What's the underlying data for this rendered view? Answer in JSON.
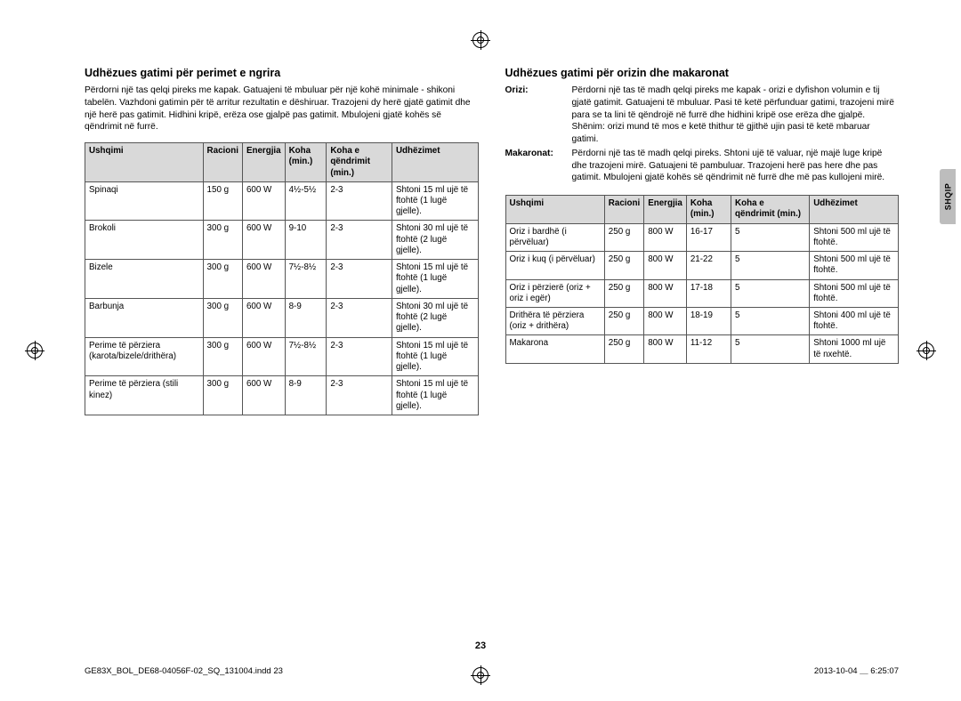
{
  "pageNumber": "23",
  "footer": {
    "left": "GE83X_BOL_DE68-04056F-02_SQ_131004.indd   23",
    "right": "2013-10-04   ＿ 6:25:07"
  },
  "sideTab": "SHQIP",
  "left": {
    "title": "Udhëzues gatimi për perimet e ngrira",
    "intro": "Përdorni një tas qelqi pireks me kapak. Gatuajeni të mbuluar për një kohë minimale - shikoni tabelën. Vazhdoni gatimin për të arritur rezultatin e dëshiruar. Trazojeni dy herë gjatë gatimit dhe një herë pas gatimit. Hidhini kripë, erëza ose gjalpë pas gatimit. Mbulojeni gjatë kohës së qëndrimit në furrë.",
    "headers": [
      "Ushqimi",
      "Racioni",
      "Energjia",
      "Koha (min.)",
      "Koha e qëndrimit (min.)",
      "Udhëzimet"
    ],
    "rows": [
      [
        "Spinaqi",
        "150 g",
        "600 W",
        "4½-5½",
        "2-3",
        "Shtoni 15 ml ujë të ftohtë (1 lugë gjelle)."
      ],
      [
        "Brokoli",
        "300 g",
        "600 W",
        "9-10",
        "2-3",
        "Shtoni 30 ml ujë të ftohtë (2 lugë gjelle)."
      ],
      [
        "Bizele",
        "300 g",
        "600 W",
        "7½-8½",
        "2-3",
        "Shtoni 15 ml ujë të ftohtë (1 lugë gjelle)."
      ],
      [
        "Barbunja",
        "300 g",
        "600 W",
        "8-9",
        "2-3",
        "Shtoni 30 ml ujë të ftohtë (2 lugë gjelle)."
      ],
      [
        "Perime të përziera (karota/bizele/drithëra)",
        "300 g",
        "600 W",
        "7½-8½",
        "2-3",
        "Shtoni 15 ml ujë të ftohtë (1 lugë gjelle)."
      ],
      [
        "Perime të përziera (stili kinez)",
        "300 g",
        "600 W",
        "8-9",
        "2-3",
        "Shtoni 15 ml ujë të ftohtë (1 lugë gjelle)."
      ]
    ]
  },
  "right": {
    "title": "Udhëzues gatimi për orizin dhe makaronat",
    "defs": [
      {
        "term": "Orizi:",
        "body": "Përdorni një tas të madh qelqi pireks me kapak - orizi e dyfishon volumin e tij gjatë gatimit. Gatuajeni të mbuluar. Pasi të ketë përfunduar gatimi, trazojeni mirë para se ta lini të qëndrojë në furrë dhe hidhini kripë ose erëza dhe gjalpë. Shënim: orizi mund të mos e ketë thithur të gjithë ujin pasi të ketë mbaruar gatimi."
      },
      {
        "term": "Makaronat:",
        "body": "Përdorni një tas të madh qelqi pireks. Shtoni ujë të valuar, një majë luge kripë dhe trazojeni mirë. Gatuajeni të pambuluar. Trazojeni herë pas here dhe pas gatimit. Mbulojeni gjatë kohës së qëndrimit në furrë dhe më pas kullojeni mirë."
      }
    ],
    "headers": [
      "Ushqimi",
      "Racioni",
      "Energjia",
      "Koha (min.)",
      "Koha e qëndrimit (min.)",
      "Udhëzimet"
    ],
    "rows": [
      [
        "Oriz i bardhë (i përvëluar)",
        "250 g",
        "800 W",
        "16-17",
        "5",
        "Shtoni 500 ml ujë të ftohtë."
      ],
      [
        "Oriz i kuq (i përvëluar)",
        "250 g",
        "800 W",
        "21-22",
        "5",
        "Shtoni 500 ml ujë të ftohtë."
      ],
      [
        "Oriz i përzierë (oriz + oriz i egër)",
        "250 g",
        "800 W",
        "17-18",
        "5",
        "Shtoni 500 ml ujë të ftohtë."
      ],
      [
        "Drithëra të përziera (oriz + drithëra)",
        "250 g",
        "800 W",
        "18-19",
        "5",
        "Shtoni 400 ml ujë të ftohtë."
      ],
      [
        "Makarona",
        "250 g",
        "800 W",
        "11-12",
        "5",
        "Shtoni 1000 ml ujë të nxehtë."
      ]
    ]
  }
}
